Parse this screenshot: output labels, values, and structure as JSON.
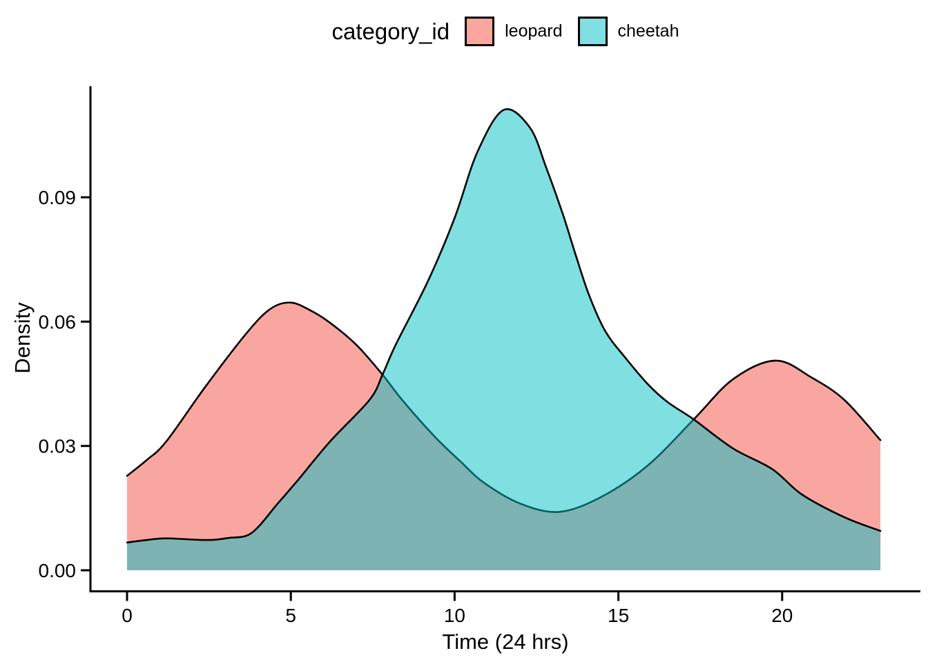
{
  "legend": {
    "title": "category_id",
    "entries": [
      {
        "label": "leopard"
      },
      {
        "label": "cheetah"
      }
    ]
  },
  "chart_data": {
    "type": "area",
    "subtype": "kernel-density",
    "title": "",
    "xlabel": "Time (24 hrs)",
    "ylabel": "Density",
    "legend_title": "category_id",
    "legend_position": "top-center",
    "grid": false,
    "background": "#ffffff",
    "outline_color": "#000000",
    "xlim": [
      0,
      23
    ],
    "ylim": [
      0,
      0.115
    ],
    "x_ticks": [
      0,
      5,
      10,
      15,
      20
    ],
    "x_tick_labels": [
      "0",
      "5",
      "10",
      "15",
      "20"
    ],
    "y_ticks": [
      0,
      0.03,
      0.06,
      0.09
    ],
    "y_tick_labels": [
      "0.00",
      "0.03",
      "0.06",
      "0.09"
    ],
    "series": [
      {
        "name": "leopard",
        "color": "#F8766D",
        "fill_opacity": 0.65,
        "draw_order": 1,
        "peaks": [
          {
            "x": 5.0,
            "y": 0.0646
          },
          {
            "x": 19.8,
            "y": 0.0506
          }
        ],
        "points": [
          [
            0,
            0.0228
          ],
          [
            0.6,
            0.0266
          ],
          [
            1.2,
            0.0311
          ],
          [
            2.4,
            0.0444
          ],
          [
            3.7,
            0.0577
          ],
          [
            4.4,
            0.0632
          ],
          [
            5.0,
            0.0646
          ],
          [
            5.6,
            0.0627
          ],
          [
            6.2,
            0.0597
          ],
          [
            7.0,
            0.0544
          ],
          [
            7.8,
            0.0472
          ],
          [
            8.4,
            0.0411
          ],
          [
            9.4,
            0.0322
          ],
          [
            10.2,
            0.0261
          ],
          [
            10.9,
            0.0211
          ],
          [
            12.0,
            0.0161
          ],
          [
            13.2,
            0.0141
          ],
          [
            14.5,
            0.0178
          ],
          [
            15.9,
            0.0253
          ],
          [
            17.3,
            0.0364
          ],
          [
            18.5,
            0.0461
          ],
          [
            19.8,
            0.0506
          ],
          [
            20.9,
            0.0465
          ],
          [
            21.9,
            0.0411
          ],
          [
            23,
            0.0314
          ]
        ]
      },
      {
        "name": "cheetah",
        "color": "#00BFC4",
        "fill_opacity": 0.5,
        "draw_order": 2,
        "peaks": [
          {
            "x": 11.5,
            "y": 0.1111
          }
        ],
        "points": [
          [
            0,
            0.0067
          ],
          [
            0.6,
            0.0073
          ],
          [
            1.2,
            0.0077
          ],
          [
            2.4,
            0.0073
          ],
          [
            3.1,
            0.0078
          ],
          [
            3.8,
            0.009
          ],
          [
            4.6,
            0.0161
          ],
          [
            5.2,
            0.0216
          ],
          [
            6.2,
            0.0311
          ],
          [
            7.4,
            0.0411
          ],
          [
            7.8,
            0.0472
          ],
          [
            8.2,
            0.0544
          ],
          [
            9.2,
            0.07
          ],
          [
            10.0,
            0.085
          ],
          [
            10.7,
            0.101
          ],
          [
            11.5,
            0.1111
          ],
          [
            12.3,
            0.1068
          ],
          [
            12.8,
            0.0971
          ],
          [
            13.3,
            0.086
          ],
          [
            13.7,
            0.076
          ],
          [
            14.1,
            0.0665
          ],
          [
            14.6,
            0.0577
          ],
          [
            15.2,
            0.0514
          ],
          [
            15.9,
            0.0449
          ],
          [
            16.5,
            0.0406
          ],
          [
            17.3,
            0.0364
          ],
          [
            18.5,
            0.0294
          ],
          [
            19.7,
            0.0244
          ],
          [
            20.6,
            0.0183
          ],
          [
            21.9,
            0.0128
          ],
          [
            23,
            0.0095
          ]
        ]
      }
    ],
    "crossings": [
      {
        "x": 7.8,
        "y": 0.0472
      },
      {
        "x": 17.3,
        "y": 0.0364
      }
    ]
  }
}
